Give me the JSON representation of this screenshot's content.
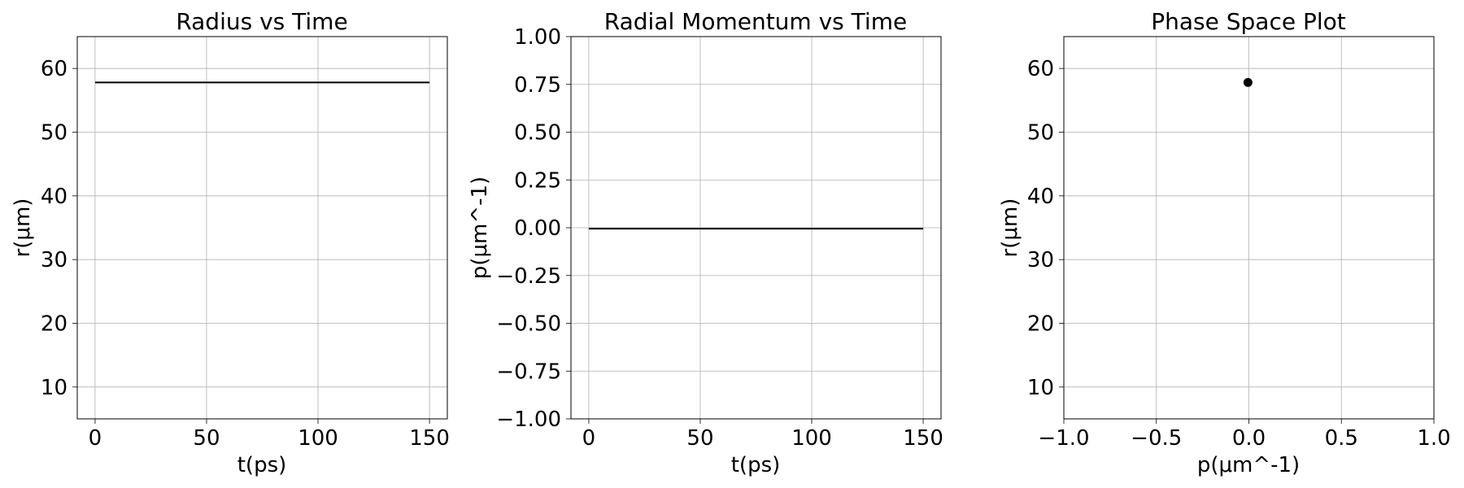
{
  "chart_data": [
    {
      "type": "line",
      "title": "Radius vs Time",
      "xlabel": "t(ps)",
      "ylabel": "r(μm)",
      "xlim": [
        -8,
        158
      ],
      "ylim": [
        5,
        65
      ],
      "xticks": [
        0,
        50,
        100,
        150
      ],
      "xtick_labels": [
        "0",
        "50",
        "100",
        "150"
      ],
      "yticks": [
        10,
        20,
        30,
        40,
        50,
        60
      ],
      "ytick_labels": [
        "10",
        "20",
        "30",
        "40",
        "50",
        "60"
      ],
      "grid": true,
      "series": [
        {
          "color": "#000000",
          "x": [
            0,
            150
          ],
          "y": [
            57.8,
            57.8
          ]
        }
      ]
    },
    {
      "type": "line",
      "title": "Radial Momentum vs Time",
      "xlabel": "t(ps)",
      "ylabel": "p(μm^-1)",
      "xlim": [
        -8,
        158
      ],
      "ylim": [
        -1.0,
        1.0
      ],
      "xticks": [
        0,
        50,
        100,
        150
      ],
      "xtick_labels": [
        "0",
        "50",
        "100",
        "150"
      ],
      "yticks": [
        -1.0,
        -0.75,
        -0.5,
        -0.25,
        0.0,
        0.25,
        0.5,
        0.75,
        1.0
      ],
      "ytick_labels": [
        "−1.00",
        "−0.75",
        "−0.50",
        "−0.25",
        "0.00",
        "0.25",
        "0.50",
        "0.75",
        "1.00"
      ],
      "grid": true,
      "series": [
        {
          "color": "#000000",
          "x": [
            0,
            150
          ],
          "y": [
            -0.005,
            -0.005
          ]
        }
      ]
    },
    {
      "type": "scatter",
      "title": "Phase Space Plot",
      "xlabel": "p(μm^-1)",
      "ylabel": "r(μm)",
      "xlim": [
        -1.0,
        1.0
      ],
      "ylim": [
        5,
        65
      ],
      "xticks": [
        -1.0,
        -0.5,
        0.0,
        0.5,
        1.0
      ],
      "xtick_labels": [
        "−1.0",
        "−0.5",
        "0.0",
        "0.5",
        "1.0"
      ],
      "yticks": [
        10,
        20,
        30,
        40,
        50,
        60
      ],
      "ytick_labels": [
        "10",
        "20",
        "30",
        "40",
        "50",
        "60"
      ],
      "grid": true,
      "series": [
        {
          "color": "#000000",
          "x": [
            -0.005
          ],
          "y": [
            57.8
          ]
        }
      ]
    }
  ]
}
